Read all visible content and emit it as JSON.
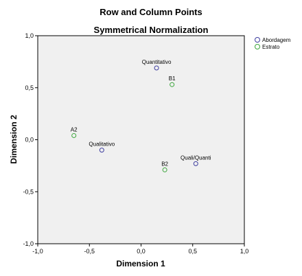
{
  "chart_data": {
    "type": "scatter",
    "title": "Row and Column Points",
    "subtitle": "Symmetrical Normalization",
    "xlabel": "Dimension 1",
    "ylabel": "Dimension 2",
    "xlim": [
      -1.0,
      1.0
    ],
    "ylim": [
      -1.0,
      1.0
    ],
    "xticks": [
      "-1,0",
      "-0,5",
      "0,0",
      "0,5",
      "1,0"
    ],
    "yticks": [
      "1,0",
      "0,5",
      "0,0",
      "-0,5",
      "-1,0"
    ],
    "grid": false,
    "legend_position": "top-right-outside",
    "series": [
      {
        "name": "Abordagem",
        "color": "#3c3c9e",
        "points": [
          {
            "label": "Quantitativo",
            "x": 0.15,
            "y": 0.69
          },
          {
            "label": "Qualitativo",
            "x": -0.38,
            "y": -0.1
          },
          {
            "label": "Quali/Quanti",
            "x": 0.53,
            "y": -0.23
          }
        ]
      },
      {
        "name": "Estrato",
        "color": "#3aa53a",
        "points": [
          {
            "label": "B1",
            "x": 0.3,
            "y": 0.53
          },
          {
            "label": "A2",
            "x": -0.65,
            "y": 0.04
          },
          {
            "label": "B2",
            "x": 0.23,
            "y": -0.29
          }
        ]
      }
    ]
  }
}
